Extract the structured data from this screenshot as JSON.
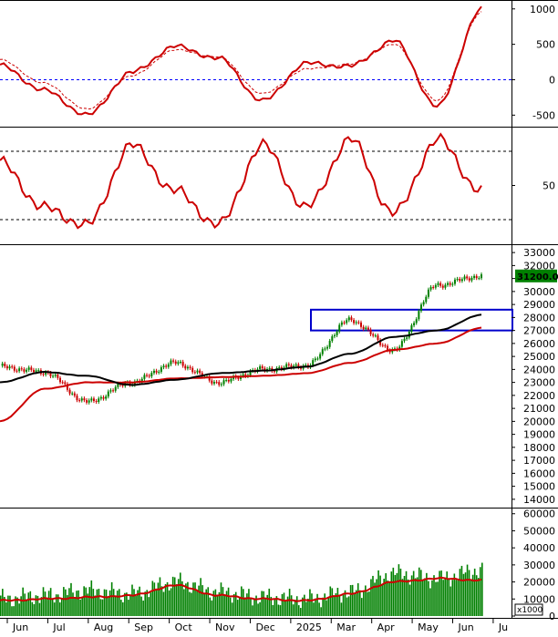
{
  "colors": {
    "price_line": "#cc0000",
    "signal_line": "#cc0000",
    "ma_short": "#000000",
    "ma_long": "#cc0000",
    "candle_up": "#008000",
    "candle_down": "#cc0000",
    "volume": "#008000",
    "volume_ma": "#cc0000",
    "box": "#0000cc",
    "zero_line": "#0000ff",
    "grid_dash": "#000000",
    "badge_bg": "#008000",
    "badge_fg": "#ffffff"
  },
  "price_badge": "31200.00",
  "volume_unit": "x1000",
  "x_axis_labels": [
    "Jun",
    "Jul",
    "Aug",
    "Sep",
    "Oct",
    "Nov",
    "Dec",
    "2025",
    "Mar",
    "Apr",
    "May",
    "Jun",
    "Ju"
  ],
  "chart_data": [
    {
      "type": "line",
      "panel": "macd",
      "ylim": [
        -650,
        1100
      ],
      "y_ticks": [
        "1000",
        "500",
        "0",
        "-500"
      ],
      "x": [
        "Jun",
        "Jul",
        "Aug",
        "Sep",
        "Oct",
        "Nov",
        "Dec",
        "2025",
        "Mar",
        "Apr",
        "May",
        "Jun"
      ],
      "series": [
        {
          "values": [
            200,
            -150,
            -500,
            100,
            470,
            300,
            -300,
            230,
            190,
            550,
            -380,
            1000
          ]
        },
        {
          "values": [
            280,
            -50,
            -420,
            50,
            420,
            320,
            -200,
            150,
            220,
            500,
            -300,
            950
          ]
        }
      ],
      "reference_lines": [
        0
      ]
    },
    {
      "type": "line",
      "panel": "oscillator",
      "ylim": [
        0,
        100
      ],
      "y_ticks": [
        "50"
      ],
      "x": [
        "Jun",
        "Jul",
        "Aug",
        "Sep",
        "Oct",
        "Nov",
        "Dec",
        "2025",
        "Mar",
        "Apr",
        "May",
        "Jun"
      ],
      "series": [
        {
          "values": [
            70,
            30,
            15,
            85,
            45,
            15,
            85,
            30,
            90,
            25,
            90,
            45
          ]
        }
      ],
      "reference_lines": [
        80,
        20
      ]
    },
    {
      "type": "line",
      "panel": "price",
      "ylim": [
        13500,
        33500
      ],
      "y_ticks": [
        "33000",
        "32000",
        "31000",
        "30000",
        "29000",
        "28000",
        "27000",
        "26000",
        "25000",
        "24000",
        "23000",
        "22000",
        "21000",
        "20000",
        "19000",
        "18000",
        "17000",
        "16000",
        "15000",
        "14000"
      ],
      "x": [
        "Jun",
        "Jul",
        "Aug",
        "Sep",
        "Oct",
        "Nov",
        "Dec",
        "2025",
        "Mar",
        "Apr",
        "May",
        "Jun"
      ],
      "series": [
        {
          "values": [
            24200,
            23800,
            21500,
            23000,
            24500,
            23000,
            24000,
            24300,
            27800,
            25500,
            30500,
            31200
          ]
        },
        {
          "values": [
            23000,
            23800,
            23500,
            22800,
            23200,
            23700,
            23900,
            24200,
            25200,
            26500,
            27000,
            28200
          ]
        },
        {
          "values": [
            20000,
            22500,
            23000,
            23000,
            23300,
            23400,
            23500,
            23700,
            24500,
            25500,
            26000,
            27200
          ]
        }
      ],
      "resistance_zone": [
        27000,
        28600
      ]
    },
    {
      "type": "bar",
      "panel": "volume",
      "ylim": [
        0,
        62000
      ],
      "y_ticks": [
        "60000",
        "50000",
        "40000",
        "30000",
        "20000",
        "10000",
        "0"
      ],
      "x": [
        "Jun",
        "Jul",
        "Aug",
        "Sep",
        "Oct",
        "Nov",
        "Dec",
        "2025",
        "Mar",
        "Apr",
        "May",
        "Jun"
      ],
      "values": [
        10000,
        12000,
        15000,
        13000,
        20000,
        14000,
        11000,
        10000,
        14000,
        25000,
        22000,
        27000
      ],
      "volume_ma": [
        9000,
        10000,
        11000,
        12000,
        18000,
        12000,
        10000,
        9000,
        13000,
        20000,
        22000,
        21000
      ]
    }
  ]
}
